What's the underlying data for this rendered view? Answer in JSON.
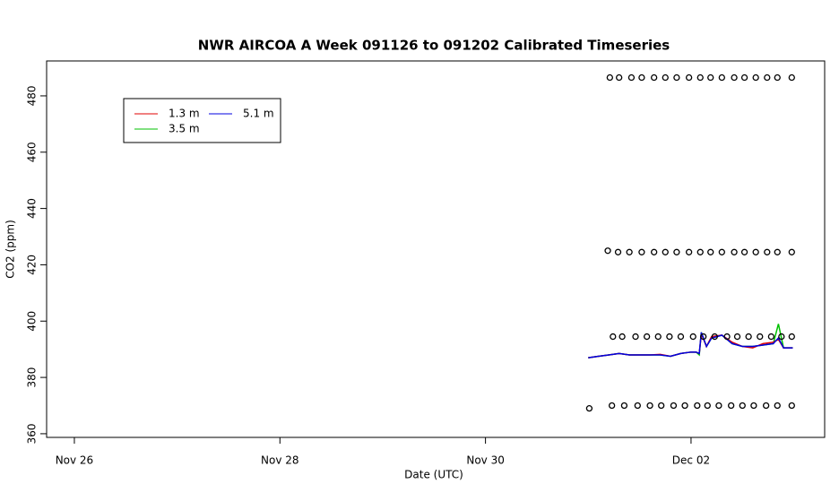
{
  "chart_data": {
    "type": "timeseries",
    "title": "NWR AIRCOA A  Week 091126 to 091202  Calibrated Timeseries",
    "x_label": "Date (UTC)",
    "y_label": "CO2 (ppm)",
    "xlim": [
      -0.27,
      7.3
    ],
    "ylim": [
      358.7,
      492.4
    ],
    "xticks": [
      {
        "value": 0,
        "label": "Nov 26"
      },
      {
        "value": 2,
        "label": "Nov 28"
      },
      {
        "value": 4,
        "label": "Nov 30"
      },
      {
        "value": 6,
        "label": "Dec 02"
      }
    ],
    "yticks": [
      360,
      380,
      400,
      420,
      440,
      460,
      480
    ],
    "legend": "top-left",
    "series": [
      {
        "name": "1.3 m",
        "color": "#e00000",
        "kind": "line",
        "x": [
          5.0,
          5.1,
          5.2,
          5.3,
          5.4,
          5.5,
          5.6,
          5.7,
          5.8,
          5.9,
          6.0,
          6.05,
          6.08,
          6.1,
          6.15,
          6.2,
          6.3,
          6.4,
          6.5,
          6.6,
          6.7,
          6.8,
          6.85,
          6.9,
          6.99
        ],
        "values": [
          387,
          387.5,
          388,
          388.5,
          388,
          388,
          388,
          388.2,
          387.5,
          388.5,
          389,
          389,
          388.5,
          395.5,
          391,
          394.5,
          395,
          392.5,
          391,
          390.5,
          392,
          392.5,
          393.5,
          390.5,
          390.5
        ]
      },
      {
        "name": "3.5 m",
        "color": "#00c000",
        "kind": "line",
        "x": [
          5.0,
          5.1,
          5.2,
          5.3,
          5.4,
          5.5,
          5.6,
          5.7,
          5.8,
          5.9,
          6.0,
          6.05,
          6.08,
          6.1,
          6.15,
          6.2,
          6.3,
          6.4,
          6.5,
          6.6,
          6.7,
          6.8,
          6.85,
          6.9,
          6.99
        ],
        "values": [
          387,
          387.5,
          388,
          388.5,
          388,
          388,
          388,
          388,
          387.5,
          388.5,
          389,
          389,
          388,
          396,
          391,
          394,
          395,
          392,
          391,
          391,
          391.5,
          392,
          399,
          390.5,
          390.5
        ]
      },
      {
        "name": "5.1 m",
        "color": "#0000e0",
        "kind": "line",
        "x": [
          5.0,
          5.1,
          5.2,
          5.3,
          5.4,
          5.5,
          5.6,
          5.7,
          5.8,
          5.9,
          6.0,
          6.05,
          6.08,
          6.1,
          6.15,
          6.2,
          6.3,
          6.4,
          6.5,
          6.6,
          6.7,
          6.8,
          6.85,
          6.9,
          6.99
        ],
        "values": [
          387,
          387.5,
          388,
          388.5,
          388,
          388,
          388,
          388,
          387.5,
          388.5,
          389,
          389,
          388.5,
          396,
          391,
          394,
          395,
          392,
          391,
          391,
          391.5,
          392,
          394,
          390.5,
          390.5
        ]
      },
      {
        "color": "#000000",
        "kind": "points",
        "x": [
          5.21,
          5.3,
          5.42,
          5.52,
          5.64,
          5.75,
          5.86,
          5.98,
          6.09,
          6.19,
          6.3,
          6.42,
          6.52,
          6.63,
          6.74,
          6.84,
          6.98,
          5.19,
          5.29,
          5.4,
          5.52,
          5.64,
          5.75,
          5.86,
          5.98,
          6.09,
          6.19,
          6.3,
          6.42,
          6.52,
          6.63,
          6.74,
          6.84,
          6.98,
          5.24,
          5.33,
          5.46,
          5.57,
          5.68,
          5.79,
          5.9,
          6.02,
          6.12,
          6.23,
          6.35,
          6.45,
          6.56,
          6.67,
          6.78,
          6.88,
          6.98,
          5.01,
          5.23,
          5.35,
          5.48,
          5.6,
          5.71,
          5.83,
          5.94,
          6.06,
          6.16,
          6.27,
          6.39,
          6.5,
          6.61,
          6.73,
          6.84,
          6.98
        ],
        "values": [
          486.5,
          486.5,
          486.5,
          486.5,
          486.5,
          486.5,
          486.5,
          486.5,
          486.5,
          486.5,
          486.5,
          486.5,
          486.5,
          486.5,
          486.5,
          486.5,
          486.5,
          425,
          424.5,
          424.5,
          424.5,
          424.5,
          424.5,
          424.5,
          424.5,
          424.5,
          424.5,
          424.5,
          424.5,
          424.5,
          424.5,
          424.5,
          424.5,
          424.5,
          394.5,
          394.5,
          394.5,
          394.5,
          394.5,
          394.5,
          394.5,
          394.5,
          394.5,
          394.5,
          394.5,
          394.5,
          394.5,
          394.5,
          394.5,
          394.5,
          394.5,
          369,
          370,
          370,
          370,
          370,
          370,
          370,
          370,
          370,
          370,
          370,
          370,
          370,
          370,
          370,
          370,
          370
        ]
      }
    ]
  }
}
